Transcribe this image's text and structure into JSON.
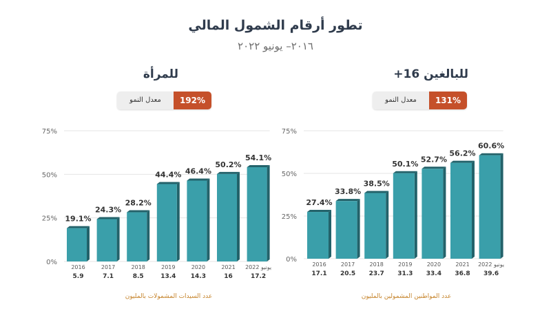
{
  "header": {
    "title": "تطور أرقام الشمول المالي",
    "subtitle": "٢٠١٦– يونيو ٢٠٢٢"
  },
  "colors": {
    "bar": "#3a9faa",
    "bar_side": "#23626a",
    "badge_accent": "#c5502a",
    "footnote": "#c5832a"
  },
  "chart_data": [
    {
      "type": "bar",
      "title": "للمرأة",
      "growth_label": "معدل النمو",
      "growth_value": "192%",
      "categories": [
        "2016",
        "2017",
        "2018",
        "2019",
        "2020",
        "2021",
        "يونيو 2022"
      ],
      "values": [
        19.1,
        24.3,
        28.2,
        44.4,
        46.4,
        50.2,
        54.1
      ],
      "value_labels": [
        "19.1%",
        "24.3%",
        "28.2%",
        "44.4%",
        "46.4%",
        "50.2%",
        "54.1%"
      ],
      "counts": [
        "5.9",
        "7.1",
        "8.5",
        "13.4",
        "14.3",
        "16",
        "17.2"
      ],
      "footnote": "عدد السيدات المشمولات بالمليون",
      "yticks": [
        "0%",
        "25%",
        "50%",
        "75%"
      ],
      "ylim": [
        0,
        75
      ]
    },
    {
      "type": "bar",
      "title": "للبالغين 16+",
      "growth_label": "معدل النمو",
      "growth_value": "131%",
      "categories": [
        "2016",
        "2017",
        "2018",
        "2019",
        "2020",
        "2021",
        "يونيو 2022"
      ],
      "values": [
        27.4,
        33.8,
        38.5,
        50.1,
        52.7,
        56.2,
        60.6
      ],
      "value_labels": [
        "27.4%",
        "33.8%",
        "38.5%",
        "50.1%",
        "52.7%",
        "56.2%",
        "60.6%"
      ],
      "counts": [
        "17.1",
        "20.5",
        "23.7",
        "31.3",
        "33.4",
        "36.8",
        "39.6"
      ],
      "footnote": "عدد المواطنين المشمولين بالمليون",
      "yticks": [
        "0%",
        "25%",
        "50%",
        "75%"
      ],
      "ylim": [
        0,
        75
      ]
    }
  ]
}
